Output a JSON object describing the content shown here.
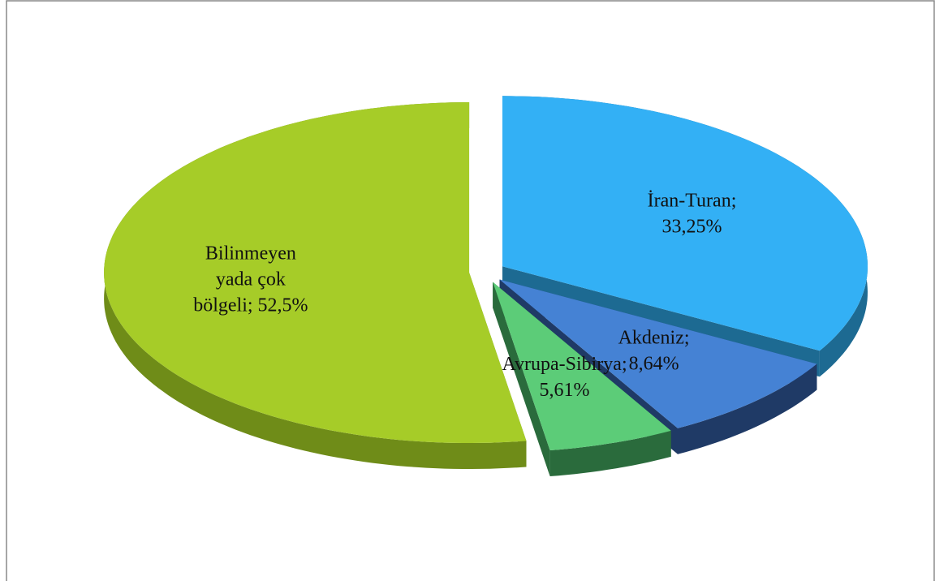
{
  "chart_data": {
    "type": "pie",
    "three_d": true,
    "exploded": true,
    "values": [
      33.25,
      8.64,
      5.61,
      52.5
    ],
    "value_labels": [
      [
        "İran-Turan;",
        "33,25%"
      ],
      [
        "Akdeniz;",
        "8,64%"
      ],
      [
        "Avrupa-Sibirya;",
        "5,61%"
      ],
      [
        "Bilinmeyen",
        "yada çok",
        "bölgeli;  52,5%"
      ]
    ],
    "colors": [
      "#33b0f5",
      "#4582d4",
      "#5ccc78",
      "#a6cc28"
    ],
    "side_colors": [
      "#1d6a92",
      "#1f3a66",
      "#2a6b3c",
      "#6f8c18"
    ]
  }
}
